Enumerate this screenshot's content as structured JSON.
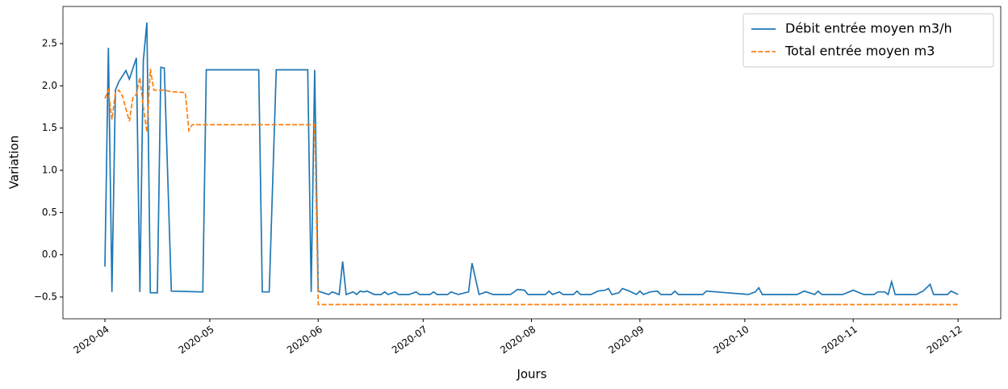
{
  "chart_data": {
    "type": "line",
    "xlabel": "Jours",
    "ylabel": "Variation",
    "xlim": [
      -12.0,
      256.2
    ],
    "ylim": [
      -0.758,
      2.94
    ],
    "xticks": [
      {
        "value": 0,
        "label": "2020-04"
      },
      {
        "value": 30,
        "label": "2020-05"
      },
      {
        "value": 61,
        "label": "2020-06"
      },
      {
        "value": 91,
        "label": "2020-07"
      },
      {
        "value": 122,
        "label": "2020-08"
      },
      {
        "value": 153,
        "label": "2020-09"
      },
      {
        "value": 183,
        "label": "2020-10"
      },
      {
        "value": 214,
        "label": "2020-11"
      },
      {
        "value": 244,
        "label": "2020-12"
      }
    ],
    "yticks": [
      {
        "value": -0.5,
        "label": "−0.5"
      },
      {
        "value": 0,
        "label": "0.0"
      },
      {
        "value": 0.5,
        "label": "0.5"
      },
      {
        "value": 1,
        "label": "1.0"
      },
      {
        "value": 1.5,
        "label": "1.5"
      },
      {
        "value": 2,
        "label": "2.0"
      },
      {
        "value": 2.5,
        "label": "2.5"
      }
    ],
    "legend": "upper right",
    "series": [
      {
        "name": "Débit entrée moyen m3/h",
        "color": "#1f77b4",
        "dash": "solid",
        "x": [
          0,
          1,
          2,
          3,
          4,
          6,
          7,
          9,
          10,
          11,
          12,
          13,
          15,
          16,
          17,
          19,
          28,
          29,
          44,
          45,
          47,
          49,
          58,
          59,
          60,
          61,
          64,
          65,
          67,
          68,
          69,
          71,
          72,
          73,
          74,
          75,
          77,
          79,
          80,
          81,
          83,
          84,
          87,
          89,
          90,
          93,
          94,
          95,
          98,
          99,
          101,
          104,
          105,
          107,
          109,
          111,
          116,
          118,
          120,
          121,
          126,
          127,
          128,
          130,
          131,
          134,
          135,
          136,
          139,
          141,
          143,
          144,
          145,
          147,
          148,
          150,
          152,
          153,
          154,
          156,
          158,
          159,
          162,
          163,
          164,
          171,
          172,
          184,
          186,
          187,
          188,
          198,
          200,
          203,
          204,
          205,
          211,
          214,
          217,
          220,
          221,
          223,
          224,
          225,
          226,
          232,
          234,
          236,
          237,
          241,
          242,
          244
        ],
        "values": [
          -0.14,
          2.45,
          -0.44,
          1.95,
          2.05,
          2.18,
          2.08,
          2.33,
          -0.44,
          2.3,
          2.75,
          -0.45,
          -0.45,
          2.22,
          2.21,
          -0.43,
          -0.44,
          2.19,
          2.19,
          -0.44,
          -0.44,
          2.19,
          2.19,
          -0.44,
          2.19,
          -0.43,
          -0.47,
          -0.44,
          -0.47,
          -0.08,
          -0.47,
          -0.44,
          -0.47,
          -0.43,
          -0.44,
          -0.43,
          -0.47,
          -0.47,
          -0.44,
          -0.47,
          -0.44,
          -0.47,
          -0.47,
          -0.44,
          -0.47,
          -0.47,
          -0.44,
          -0.47,
          -0.47,
          -0.44,
          -0.47,
          -0.44,
          -0.1,
          -0.47,
          -0.44,
          -0.47,
          -0.47,
          -0.41,
          -0.42,
          -0.47,
          -0.47,
          -0.43,
          -0.47,
          -0.44,
          -0.47,
          -0.47,
          -0.43,
          -0.47,
          -0.47,
          -0.43,
          -0.42,
          -0.4,
          -0.47,
          -0.45,
          -0.4,
          -0.43,
          -0.47,
          -0.43,
          -0.47,
          -0.44,
          -0.43,
          -0.47,
          -0.47,
          -0.43,
          -0.47,
          -0.47,
          -0.43,
          -0.47,
          -0.44,
          -0.39,
          -0.47,
          -0.47,
          -0.43,
          -0.47,
          -0.43,
          -0.47,
          -0.47,
          -0.42,
          -0.47,
          -0.47,
          -0.44,
          -0.44,
          -0.47,
          -0.32,
          -0.47,
          -0.47,
          -0.43,
          -0.35,
          -0.47,
          -0.47,
          -0.43,
          -0.47
        ]
      },
      {
        "name": "Total entrée moyen m3",
        "color": "#ff7f0e",
        "dash": "dashed",
        "x": [
          0,
          1,
          2,
          3,
          4,
          5,
          7,
          8,
          9,
          10,
          11,
          12,
          13,
          14,
          17,
          19,
          23,
          24,
          25,
          60,
          61,
          244
        ],
        "values": [
          1.85,
          1.95,
          1.6,
          1.92,
          1.95,
          1.88,
          1.58,
          1.86,
          1.9,
          2.1,
          1.75,
          1.45,
          2.2,
          1.95,
          1.95,
          1.93,
          1.92,
          1.47,
          1.54,
          1.54,
          -0.59,
          -0.59
        ]
      }
    ]
  }
}
